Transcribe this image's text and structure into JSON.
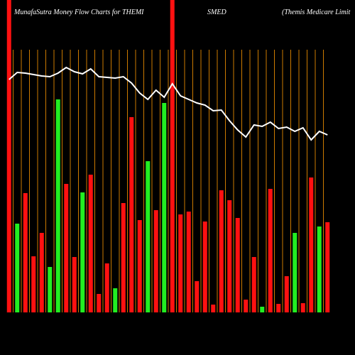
{
  "chart_data": {
    "type": "bar",
    "title": [
      "MunafaSutra  Money Flow  Charts for THEMI",
      "SMED",
      "(Themis Medicare  Limit"
    ],
    "ylim": [
      0,
      440
    ],
    "colors": {
      "up": "#22ee22",
      "down": "#ff1111",
      "line": "#ffffff",
      "grid": "#cc7a00"
    },
    "series": [
      {
        "name": "money flow",
        "values": [
          440,
          125,
          168,
          79,
          112,
          64,
          300,
          181,
          78,
          169,
          194,
          26,
          69,
          34,
          154,
          275,
          130,
          213,
          144,
          295,
          440,
          138,
          142,
          44,
          128,
          11,
          172,
          158,
          133,
          18,
          78,
          8,
          174,
          12,
          51,
          112,
          13,
          190,
          121,
          127
        ],
        "direction": [
          "down",
          "up",
          "down",
          "down",
          "down",
          "up",
          "up",
          "down",
          "down",
          "up",
          "down",
          "down",
          "down",
          "up",
          "down",
          "down",
          "down",
          "up",
          "down",
          "up",
          "down",
          "down",
          "down",
          "down",
          "down",
          "down",
          "down",
          "down",
          "down",
          "down",
          "down",
          "up",
          "down",
          "down",
          "down",
          "up",
          "down",
          "down",
          "up",
          "down"
        ]
      },
      {
        "name": "price",
        "axis": "y2",
        "values": [
          328,
          338,
          337,
          335,
          333,
          332,
          337,
          345,
          339,
          336,
          343,
          332,
          331,
          330,
          332,
          323,
          309,
          300,
          313,
          303,
          322,
          305,
          300,
          295,
          292,
          284,
          285,
          270,
          257,
          247,
          264,
          262,
          268,
          259,
          261,
          255,
          260,
          243,
          255,
          250
        ]
      }
    ],
    "y2lim": [
      0,
      440
    ]
  }
}
